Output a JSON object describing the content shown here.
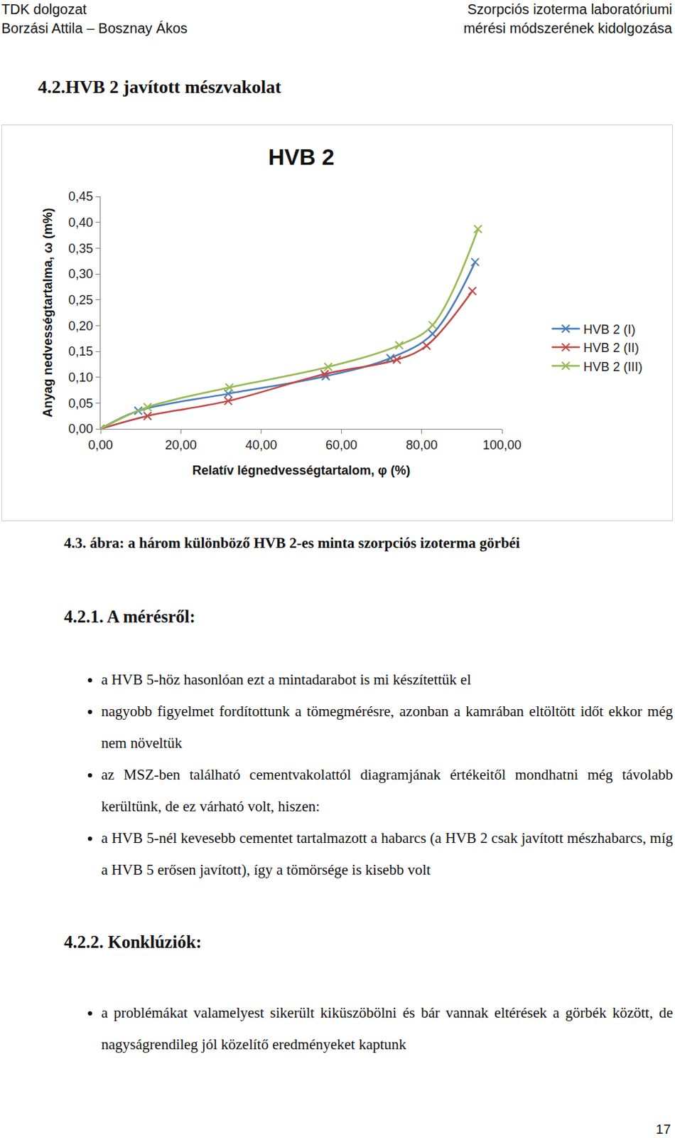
{
  "header": {
    "left": [
      "TDK dolgozat",
      "Borzási Attila – Bosznay Ákos"
    ],
    "right": [
      "Szorpciós izoterma laboratóriumi",
      "mérési módszerének kidolgozása"
    ]
  },
  "section_title": "4.2.HVB 2 javított mészvakolat",
  "chart_data": {
    "type": "line",
    "title": "HVB 2",
    "x_label": "Relatív légnedvességtartalom, φ (%)",
    "y_label": "Anyag nedvességtartalma, ω (m%)",
    "xlim": [
      0,
      100
    ],
    "xticks": [
      {
        "value": 0,
        "label": "0,00"
      },
      {
        "value": 20,
        "label": "20,00"
      },
      {
        "value": 40,
        "label": "40,00"
      },
      {
        "value": 60,
        "label": "60,00"
      },
      {
        "value": 80,
        "label": "80,00"
      },
      {
        "value": 100,
        "label": "100,00"
      }
    ],
    "ylim": [
      0,
      0.45
    ],
    "yticks": [
      {
        "value": 0,
        "label": "0,00"
      },
      {
        "value": 0.05,
        "label": "0,05"
      },
      {
        "value": 0.1,
        "label": "0,10"
      },
      {
        "value": 0.15,
        "label": "0,15"
      },
      {
        "value": 0.2,
        "label": "0,20"
      },
      {
        "value": 0.25,
        "label": "0,25"
      },
      {
        "value": 0.3,
        "label": "0,30"
      },
      {
        "value": 0.35,
        "label": "0,35"
      },
      {
        "value": 0.4,
        "label": "0,40"
      },
      {
        "value": 0.45,
        "label": "0,45"
      }
    ],
    "grid": false,
    "legend": "right",
    "series": [
      {
        "name": "HVB 2 (I)",
        "color": "#4a7ebb",
        "marker": "x",
        "line_style": "smooth",
        "x": [
          0,
          9.4,
          31.8,
          56.1,
          72.2,
          82.7,
          93.3
        ],
        "values": [
          0,
          0.035,
          0.068,
          0.102,
          0.137,
          0.184,
          0.323
        ]
      },
      {
        "name": "HVB 2 (II)",
        "color": "#be4b48",
        "marker": "x",
        "line_style": "smooth",
        "x": [
          0,
          11.7,
          31.8,
          55.8,
          73.8,
          81.2,
          92.6
        ],
        "values": [
          0,
          0.025,
          0.054,
          0.106,
          0.134,
          0.161,
          0.267
        ]
      },
      {
        "name": "HVB 2 (III)",
        "color": "#98b954",
        "marker": "x",
        "line_style": "smooth",
        "x": [
          0,
          11.7,
          32.1,
          56.7,
          74.4,
          82.7,
          94.0
        ],
        "values": [
          0,
          0.042,
          0.08,
          0.12,
          0.162,
          0.201,
          0.387
        ]
      }
    ]
  },
  "caption": "4.3. ábra: a három különböző HVB 2-es minta szorpciós izoterma görbéi",
  "sections": [
    {
      "title": "4.2.1. A mérésről:",
      "bullets": [
        "a HVB 5-höz hasonlóan ezt a mintadarabot is mi készítettük el",
        "nagyobb figyelmet fordítottunk a tömegmérésre, azonban a kamrában eltöltött időt ekkor még nem növeltük",
        "az MSZ-ben található cementvakolattól diagramjának értékeitől mondhatni még távolabb kerültünk, de ez várható volt, hiszen:",
        "a HVB 5-nél kevesebb cementet tartalmazott a habarcs (a HVB 2 csak javított mészhabarcs, míg a HVB 5 erősen javított), így a tömörsége is kisebb volt"
      ]
    },
    {
      "title": "4.2.2. Konklúziók:",
      "bullets": [
        "a problémákat valamelyest sikerült kiküszöbölni és bár vannak eltérések a görbék között, de nagyságrendileg jól közelítő eredményeket kaptunk"
      ]
    }
  ],
  "page_number": 17
}
